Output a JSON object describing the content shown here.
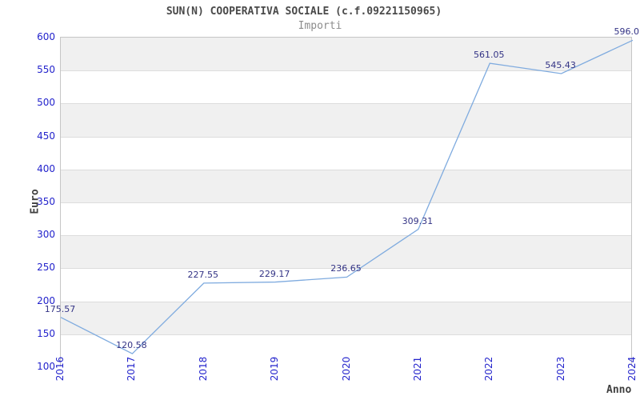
{
  "header": {
    "title": "SUN(N) COOPERATIVA SOCIALE (c.f.09221150965)",
    "subtitle": "Importi"
  },
  "chart_data": {
    "type": "line",
    "title": "SUN(N) COOPERATIVA SOCIALE (c.f.09221150965)",
    "subtitle": "Importi",
    "xlabel": "Anno",
    "ylabel": "Euro",
    "x": [
      2016,
      2017,
      2018,
      2019,
      2020,
      2021,
      2022,
      2023,
      2024
    ],
    "values": [
      175.57,
      120.58,
      227.55,
      229.17,
      236.65,
      309.31,
      561.05,
      545.43,
      596.0
    ],
    "value_labels": [
      "175.57",
      "120.58",
      "227.55",
      "229.17",
      "236.65",
      "309.31",
      "561.05",
      "545.43",
      "596.0"
    ],
    "ylim": [
      100,
      600
    ],
    "yticks": [
      100,
      150,
      200,
      250,
      300,
      350,
      400,
      450,
      500,
      550,
      600
    ],
    "grid": "alternating-horizontal-bands",
    "legend_position": "none",
    "colors": {
      "line": "#7fabdf",
      "tick_label": "#2323cc",
      "value_label": "#333385",
      "band": "#f0f0f0",
      "band_alt": "#ffffff",
      "gridline": "#dcdcdc",
      "plot_border": "#c6c6c6",
      "title": "#4a4a4a",
      "subtitle": "#8c8c8c",
      "axis_label": "#3f3f3f",
      "background": "#ffffff"
    }
  }
}
